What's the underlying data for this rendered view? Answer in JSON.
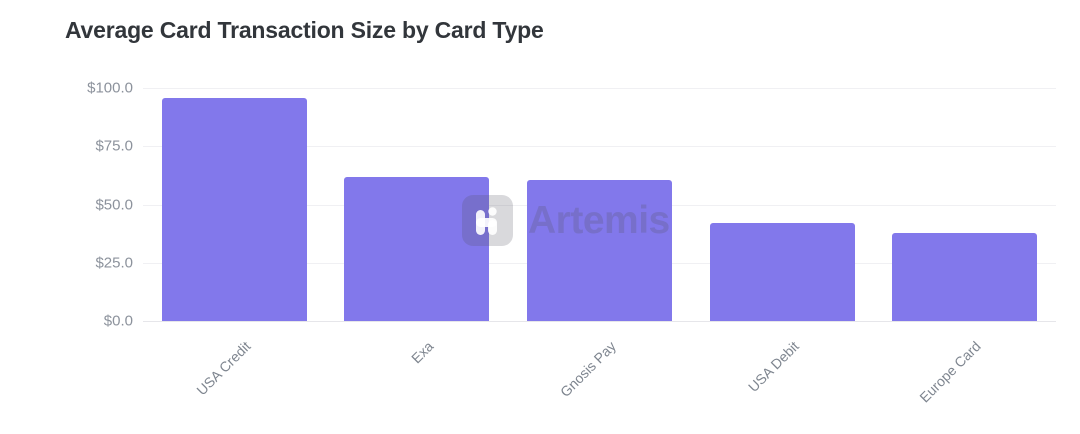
{
  "page": {
    "title": "Average Card Transaction Size by Card Type"
  },
  "watermark": {
    "label": "Artemis",
    "icon": "artemis-logo-icon"
  },
  "colors": {
    "bar": "#8278EB",
    "title_text": "#32363B",
    "axis_tick_text": "#8C929C",
    "x_tick_text": "#7E858F",
    "gridline": "#F0F0F3",
    "background": "#FFFFFF",
    "watermark": "rgba(84,84,97,0.24)"
  },
  "chart_data": {
    "type": "bar",
    "title": "Average Card Transaction Size by Card Type",
    "categories": [
      "USA Credit",
      "Exa",
      "Gnosis Pay",
      "USA Debit",
      "Europe Card"
    ],
    "values": [
      95.9,
      62.0,
      60.6,
      42.2,
      37.9
    ],
    "xlabel": "",
    "ylabel": "",
    "ylim": [
      0,
      100
    ],
    "yticks": [
      0,
      25,
      50,
      75,
      100
    ],
    "ytick_labels": [
      "$0.0",
      "$25.0",
      "$50.0",
      "$75.0",
      "$100.0"
    ],
    "grid": true,
    "legend": false,
    "bar_color": "#8278EB",
    "x_tick_rotation_deg": -45
  }
}
